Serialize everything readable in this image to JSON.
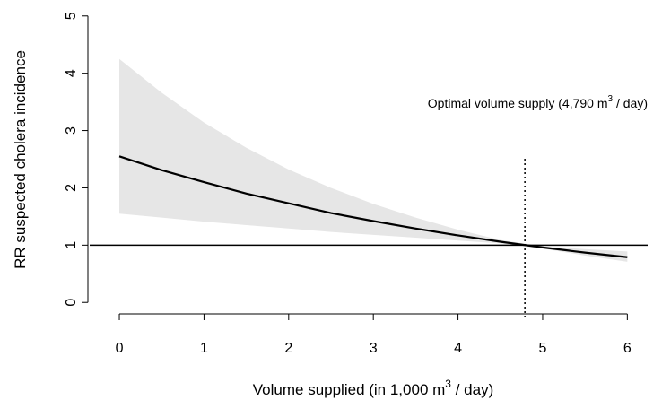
{
  "chart_data": {
    "type": "line_band",
    "x_label": [
      "Volume supplied (in 1,000 m",
      "3",
      " / day)"
    ],
    "y_label": "RR suspected cholera incidence",
    "annotation": [
      "Optimal volume supply (4,790 m",
      "3",
      " / day)"
    ],
    "x": [
      0,
      0.5,
      1,
      1.5,
      2,
      2.5,
      3,
      3.5,
      4,
      4.5,
      5,
      5.5,
      6
    ],
    "series": [
      {
        "name": "RR",
        "color": "#000000",
        "values": [
          2.55,
          2.31,
          2.1,
          1.9,
          1.73,
          1.56,
          1.42,
          1.29,
          1.17,
          1.06,
          0.96,
          0.87,
          0.79
        ],
        "upper": [
          4.25,
          3.66,
          3.14,
          2.7,
          2.32,
          2.0,
          1.72,
          1.48,
          1.27,
          1.09,
          0.98,
          0.93,
          0.89
        ],
        "lower": [
          1.55,
          1.48,
          1.41,
          1.35,
          1.29,
          1.23,
          1.18,
          1.13,
          1.08,
          1.03,
          0.94,
          0.82,
          0.71
        ],
        "band_color": "#e6e6e6"
      }
    ],
    "reference_y": 1,
    "optimal_x": 4.79,
    "xlim": [
      -0.35,
      6.24
    ],
    "ylim": [
      -0.2,
      5.2
    ],
    "xticks": [
      0,
      1,
      2,
      3,
      4,
      5,
      6
    ],
    "yticks": [
      0,
      1,
      2,
      3,
      4,
      5
    ]
  }
}
